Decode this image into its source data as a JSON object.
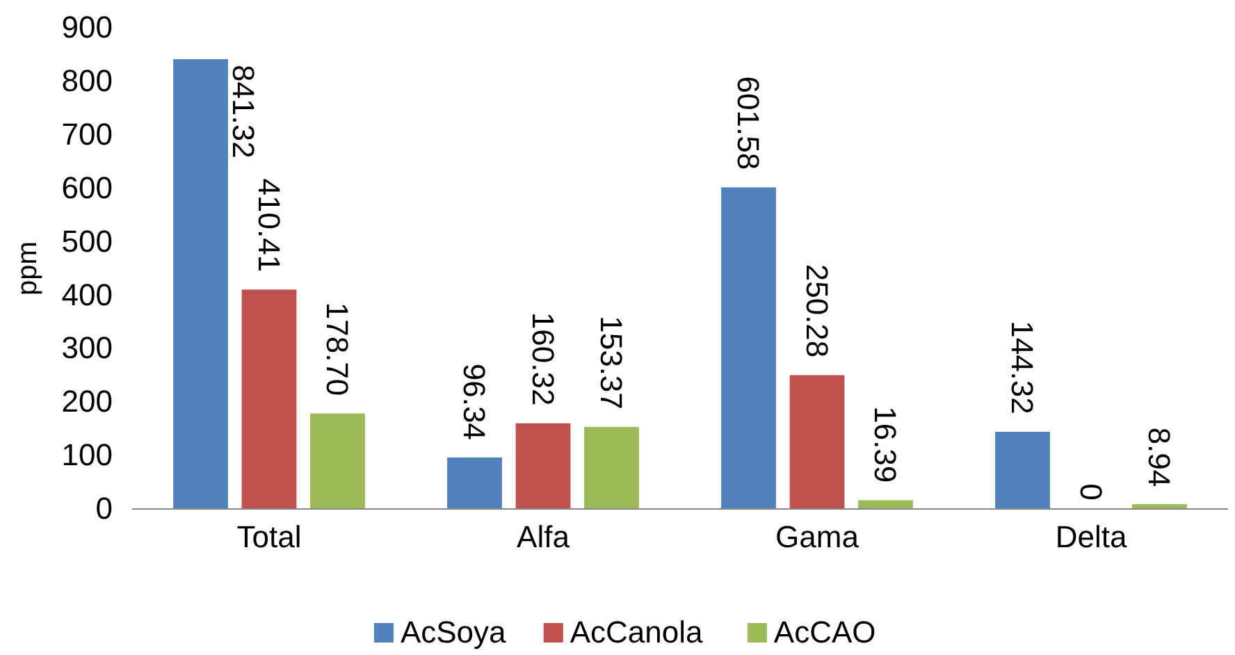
{
  "chart_data": {
    "type": "bar",
    "ylabel": "ppm",
    "categories": [
      "Total",
      "Alfa",
      "Gama",
      "Delta"
    ],
    "series": [
      {
        "name": "AcSoya",
        "color": "#4f81bd",
        "values": [
          841.32,
          96.34,
          601.58,
          144.32
        ],
        "value_labels": [
          "841.32",
          "96.34",
          "601.58",
          "144.32"
        ]
      },
      {
        "name": "AcCanola",
        "color": "#c0504d",
        "values": [
          410.41,
          160.32,
          250.28,
          0
        ],
        "value_labels": [
          "410.41",
          "160.32",
          "250.28",
          "0"
        ]
      },
      {
        "name": "AcCAO",
        "color": "#9bbb59",
        "values": [
          178.7,
          153.37,
          16.39,
          8.94
        ],
        "value_labels": [
          "178.70",
          "153.37",
          "16.39",
          "8.94"
        ]
      }
    ],
    "ylim": [
      0,
      900
    ],
    "yticks": [
      0,
      100,
      200,
      300,
      400,
      500,
      600,
      700,
      800,
      900
    ],
    "grid": false,
    "legend": "bottom"
  }
}
